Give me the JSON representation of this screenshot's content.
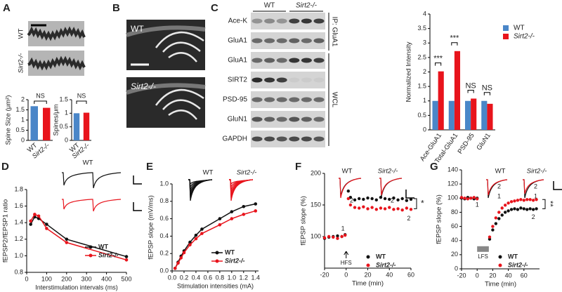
{
  "figure": {
    "panels": [
      "A",
      "B",
      "C",
      "D",
      "E",
      "F",
      "G"
    ],
    "a_images": [
      "WT",
      "Sirt2-/-"
    ],
    "b_images": [
      "WT",
      "Sirt2-/-"
    ],
    "c_blot_groups": [
      "WT",
      "Sirt2-/-"
    ],
    "c_blot_rows": [
      "Ace-K",
      "GluA1",
      "GluA1",
      "SIRT2",
      "PSD-95",
      "GluN1",
      "GAPDH"
    ],
    "c_blot_sides": [
      "IP: GluA1",
      "WCL"
    ],
    "d_inset": [
      "WT"
    ],
    "e_inset": [
      "WT",
      "Sirt2-/-"
    ],
    "f_inset": [
      "WT",
      "Sirt2-/-",
      "2",
      "2"
    ],
    "g_inset": [
      "WT",
      "Sirt2-/-",
      "2",
      "1",
      "2",
      "1"
    ]
  },
  "chart_data": [
    {
      "type": "bar",
      "ylabel": "Spine Size (μm²)",
      "categories": [
        "WT",
        "Sirt2-/-"
      ],
      "values": [
        1.68,
        1.6
      ],
      "colors": [
        "#4a86c8",
        "#e8141c"
      ],
      "ylim": [
        0,
        2
      ],
      "yticks": [
        0,
        0.5,
        1,
        1.5,
        2
      ],
      "annotations": [
        "NS"
      ]
    },
    {
      "type": "bar",
      "ylabel": "Spines/μm",
      "categories": [
        "WT",
        "Sirt2-/-"
      ],
      "values": [
        1.0,
        1.02
      ],
      "colors": [
        "#4a86c8",
        "#e8141c"
      ],
      "ylim": [
        0,
        1.5
      ],
      "yticks": [
        0,
        0.5,
        1,
        1.5
      ],
      "annotations": [
        "NS"
      ]
    },
    {
      "type": "bar",
      "ylabel": "Normalized Intensity",
      "categories": [
        "Ace-GluA1",
        "Total-GluA1",
        "PSD-95",
        "GluN1"
      ],
      "series": [
        {
          "name": "WT",
          "color": "#4a86c8",
          "values": [
            1,
            1,
            1,
            1
          ]
        },
        {
          "name": "Sirt2-/-",
          "color": "#e8141c",
          "values": [
            2.02,
            2.72,
            1.08,
            0.9
          ]
        }
      ],
      "ylim": [
        0,
        4
      ],
      "yticks": [
        0,
        0.5,
        1,
        1.5,
        2,
        2.5,
        3,
        3.5,
        4
      ],
      "legend": "upper right",
      "annotations": [
        "***",
        "***",
        "NS",
        "NS"
      ]
    },
    {
      "type": "line",
      "xlabel": "Interstimulation intervals (ms)",
      "ylabel": "fEPSP2/fEPSP1 ratio",
      "x": [
        20,
        40,
        60,
        100,
        200,
        500
      ],
      "series": [
        {
          "name": "WT",
          "color": "#111111",
          "values": [
            1.38,
            1.47,
            1.45,
            1.38,
            1.2,
            0.99
          ]
        },
        {
          "name": "Sirt2-/-",
          "color": "#e8141c",
          "values": [
            1.42,
            1.5,
            1.48,
            1.33,
            1.16,
            0.95
          ]
        }
      ],
      "xlim": [
        0,
        500
      ],
      "xticks": [
        0,
        100,
        200,
        300,
        400,
        500
      ],
      "ylim": [
        0.8,
        1.8
      ],
      "yticks": [
        0.8,
        {
          "value": 1,
          "label": "1.0"
        },
        1.2,
        1.4,
        1.6,
        1.8
      ],
      "legend": "lower right"
    },
    {
      "type": "line",
      "xlabel": "Stimulation intensities (mA)",
      "ylabel": "fEPSP slope (mV/ms)",
      "x": [
        0.05,
        0.1,
        0.15,
        0.2,
        0.3,
        0.4,
        0.5,
        0.8,
        1.0,
        1.2,
        1.4
      ],
      "series": [
        {
          "name": "WT",
          "color": "#111111",
          "values": [
            0.03,
            0.1,
            0.17,
            0.23,
            0.33,
            0.41,
            0.48,
            0.6,
            0.68,
            0.74,
            0.77
          ]
        },
        {
          "name": "Sirt2-/-",
          "color": "#e8141c",
          "values": [
            0.03,
            0.09,
            0.15,
            0.21,
            0.3,
            0.37,
            0.43,
            0.53,
            0.6,
            0.65,
            0.69
          ]
        }
      ],
      "xlim": [
        0,
        1.45
      ],
      "xticks": [
        {
          "value": 0,
          "label": "0.0"
        },
        0.2,
        0.4,
        0.6,
        0.8,
        {
          "value": 1,
          "label": "1.0"
        },
        1.2,
        1.4
      ],
      "ylim": [
        0,
        1
      ],
      "yticks": [
        {
          "value": 0,
          "label": "0.0"
        },
        0.2,
        0.4,
        0.6,
        0.8,
        {
          "value": 1,
          "label": "1.0"
        }
      ],
      "legend": "lower right"
    },
    {
      "type": "scatter",
      "xlabel": "Time (min)",
      "ylabel": "fEPSP slope (%)",
      "x": [
        -20,
        -16,
        -12,
        -8,
        -4,
        -1,
        2,
        4,
        8,
        12,
        16,
        20,
        24,
        28,
        32,
        36,
        40,
        44,
        48,
        52,
        56,
        60
      ],
      "series": [
        {
          "name": "WT",
          "color": "#111111",
          "values": [
            97,
            99,
            100,
            101,
            100,
            103,
            172,
            162,
            158,
            160,
            159,
            161,
            160,
            158,
            162,
            160,
            159,
            161,
            158,
            160,
            157,
            159
          ]
        },
        {
          "name": "Sirt2-/-",
          "color": "#e8141c",
          "values": [
            98,
            100,
            99,
            97,
            100,
            102,
            160,
            150,
            146,
            145,
            147,
            144,
            146,
            143,
            145,
            144,
            146,
            143,
            144,
            142,
            145,
            143
          ]
        }
      ],
      "xlim": [
        -20,
        60
      ],
      "xticks": [
        -20,
        0,
        20,
        40,
        60
      ],
      "ylim": [
        50,
        200
      ],
      "yticks": [
        100,
        150,
        200
      ],
      "legend": "lower right",
      "annotations": [
        "HFS",
        "*",
        "1",
        "2"
      ]
    },
    {
      "type": "scatter",
      "xlabel": "Time (min)",
      "ylabel": "fEPSP slope (%)",
      "x": [
        -20,
        -16,
        -12,
        -8,
        -4,
        0,
        4,
        8,
        12,
        16,
        20,
        24,
        28,
        32,
        36,
        40,
        44,
        48,
        52,
        56,
        60,
        64,
        68,
        72,
        76
      ],
      "series": [
        {
          "name": "WT",
          "color": "#111111",
          "values": [
            100,
            99,
            101,
            100,
            99,
            100,
            null,
            null,
            null,
            42,
            55,
            64,
            71,
            76,
            80,
            82,
            84,
            85,
            84,
            86,
            85,
            84,
            85,
            84,
            85
          ]
        },
        {
          "name": "Sirt2-/-",
          "color": "#e8141c",
          "values": [
            101,
            100,
            99,
            100,
            101,
            99,
            null,
            null,
            null,
            45,
            60,
            72,
            80,
            86,
            90,
            93,
            95,
            96,
            97,
            98,
            97,
            98,
            98,
            97,
            98
          ]
        }
      ],
      "xlim": [
        -20,
        80
      ],
      "xticks": [
        -20,
        0,
        20,
        40,
        60
      ],
      "ylim": [
        0,
        140
      ],
      "yticks": [
        0,
        20,
        40,
        60,
        80,
        100,
        120,
        140
      ],
      "legend": "lower right",
      "annotations": [
        "LFS",
        "**",
        "1",
        "2"
      ]
    }
  ]
}
